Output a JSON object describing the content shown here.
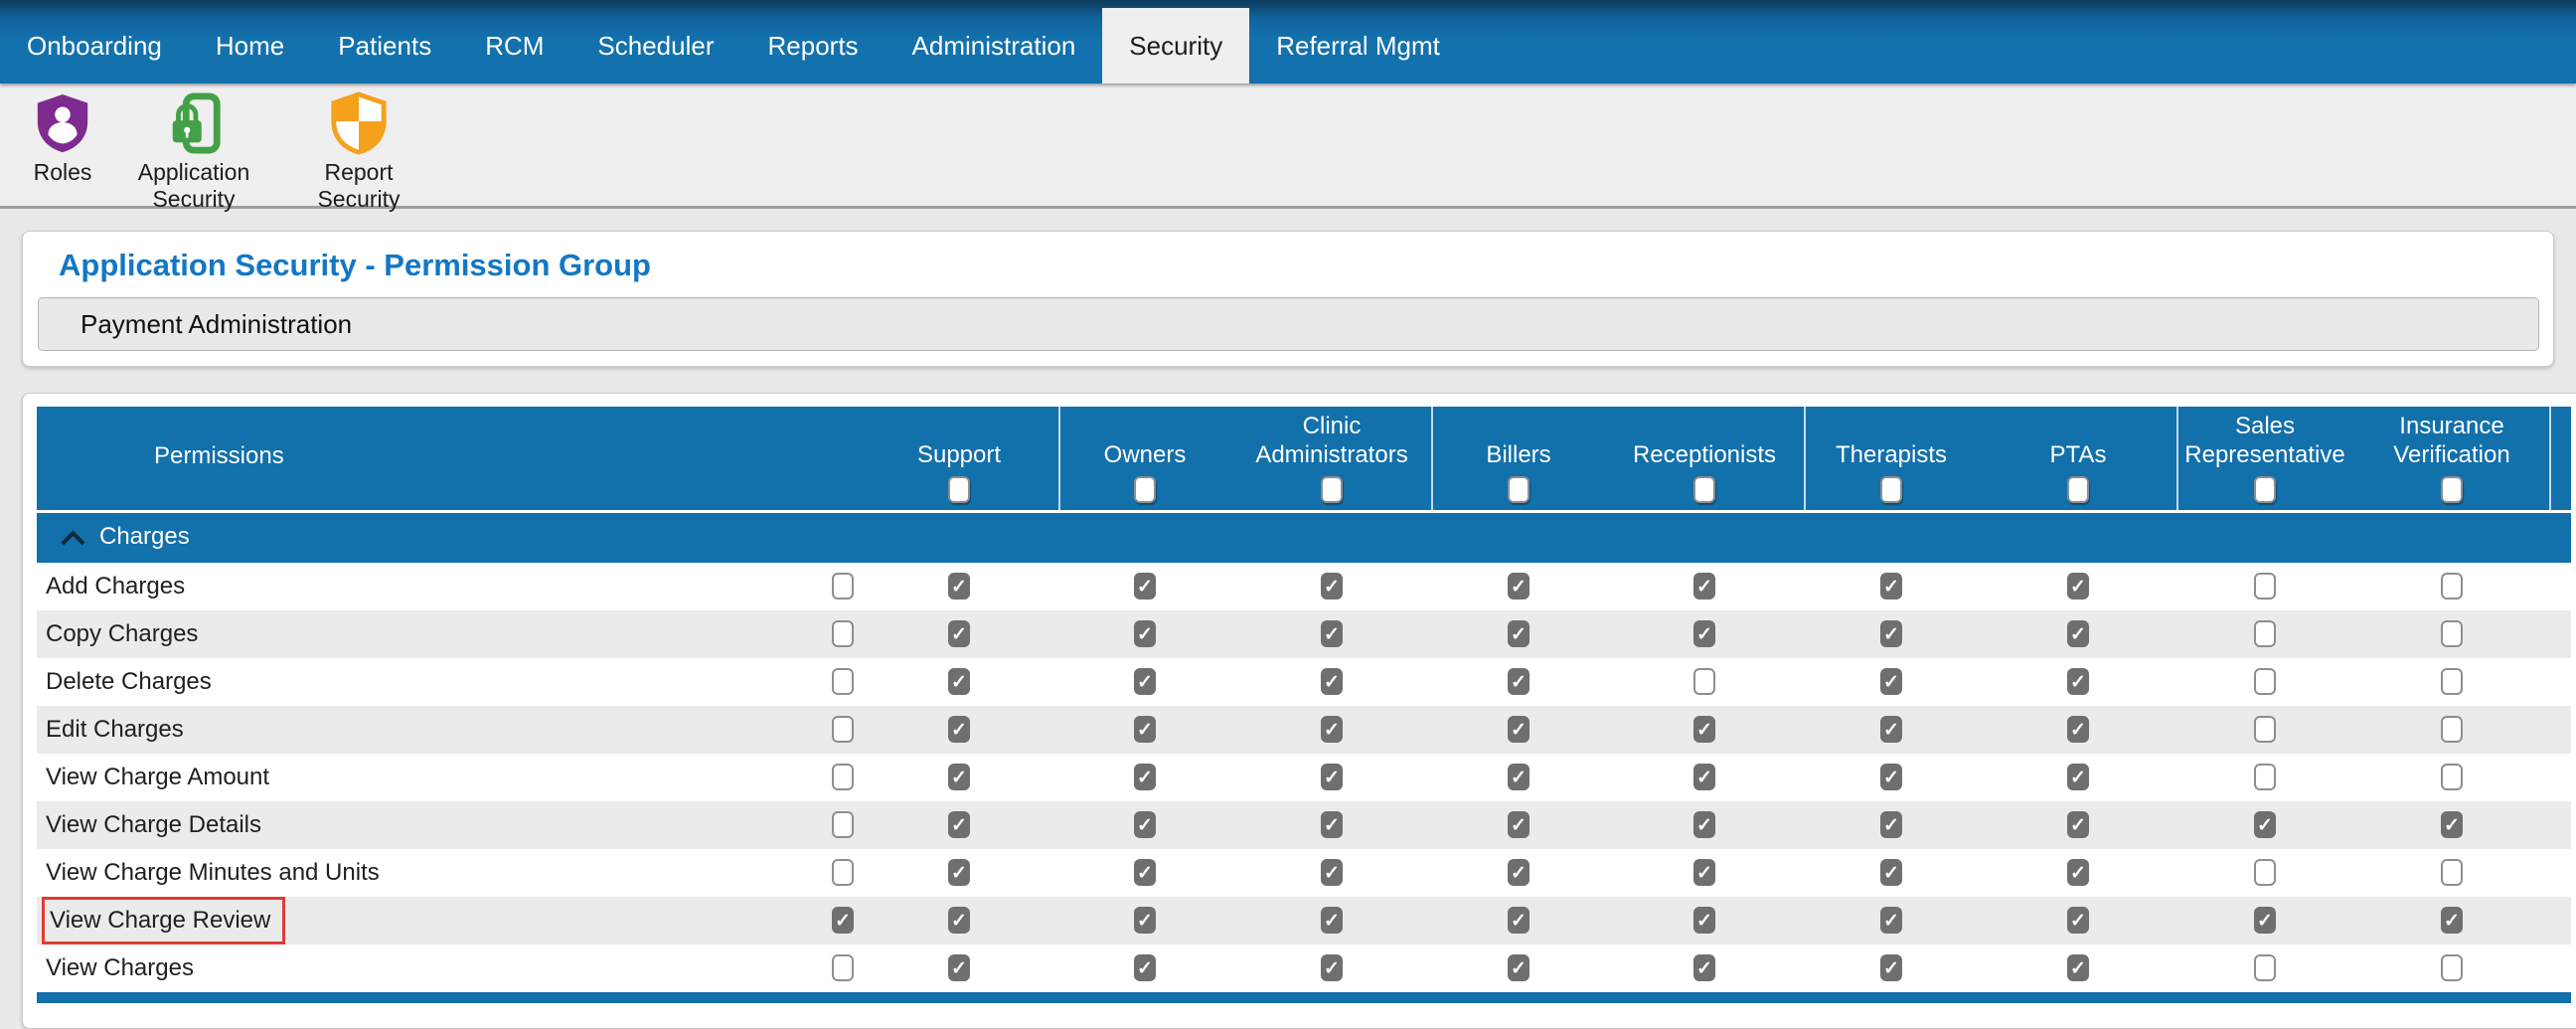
{
  "nav": {
    "tabs": [
      {
        "label": "Onboarding",
        "active": false
      },
      {
        "label": "Home",
        "active": false
      },
      {
        "label": "Patients",
        "active": false
      },
      {
        "label": "RCM",
        "active": false
      },
      {
        "label": "Scheduler",
        "active": false
      },
      {
        "label": "Reports",
        "active": false
      },
      {
        "label": "Administration",
        "active": false
      },
      {
        "label": "Security",
        "active": true
      },
      {
        "label": "Referral Mgmt",
        "active": false
      }
    ]
  },
  "toolbar": {
    "items": [
      {
        "label": "Roles",
        "icon": "roles-shield-icon",
        "color": "#7d2b8f"
      },
      {
        "label": "Application Security",
        "icon": "application-security-lock-icon",
        "color": "#43a047"
      },
      {
        "label": "Report Security",
        "icon": "report-security-shield-icon",
        "color": "#f5a11c"
      }
    ]
  },
  "page": {
    "title": "Application Security - Permission Group",
    "group_selector_value": "Payment Administration"
  },
  "table": {
    "permissions_header": "Permissions",
    "columns": [
      "Support",
      "Owners",
      "Clinic Administrators",
      "Billers",
      "Receptionists",
      "Therapists",
      "PTAs",
      "Sales Representative",
      "Insurance Verification"
    ],
    "group": {
      "label": "Charges",
      "state": "expanded"
    },
    "rows": [
      {
        "label": "Add Charges",
        "highlight": false,
        "checks": [
          false,
          true,
          true,
          true,
          true,
          true,
          true,
          true,
          false,
          false
        ]
      },
      {
        "label": "Copy Charges",
        "highlight": false,
        "checks": [
          false,
          true,
          true,
          true,
          true,
          true,
          true,
          true,
          false,
          false
        ]
      },
      {
        "label": "Delete Charges",
        "highlight": false,
        "checks": [
          false,
          true,
          true,
          true,
          true,
          false,
          true,
          true,
          false,
          false
        ]
      },
      {
        "label": "Edit Charges",
        "highlight": false,
        "checks": [
          false,
          true,
          true,
          true,
          true,
          true,
          true,
          true,
          false,
          false
        ]
      },
      {
        "label": "View Charge Amount",
        "highlight": false,
        "checks": [
          false,
          true,
          true,
          true,
          true,
          true,
          true,
          true,
          false,
          false
        ]
      },
      {
        "label": "View Charge Details",
        "highlight": false,
        "checks": [
          false,
          true,
          true,
          true,
          true,
          true,
          true,
          true,
          true,
          true
        ]
      },
      {
        "label": "View Charge Minutes and Units",
        "highlight": false,
        "checks": [
          false,
          true,
          true,
          true,
          true,
          true,
          true,
          true,
          false,
          false
        ]
      },
      {
        "label": "View Charge Review",
        "highlight": true,
        "checks": [
          true,
          true,
          true,
          true,
          true,
          true,
          true,
          true,
          true,
          true
        ]
      },
      {
        "label": "View Charges",
        "highlight": false,
        "checks": [
          false,
          true,
          true,
          true,
          true,
          true,
          true,
          true,
          false,
          false
        ]
      }
    ],
    "check_columns": [
      "row-select-all",
      "support",
      "owners",
      "clinic-administrators",
      "billers",
      "receptionists",
      "therapists",
      "ptas",
      "sales-representative",
      "insurance-verification"
    ]
  },
  "colors": {
    "nav_blue": "#1371ad",
    "header_blue": "#1270ab",
    "title_blue": "#1377c4",
    "alt_row": "#ebebeb",
    "checked_gray": "#6f6f6f",
    "highlight_red": "#e23b35",
    "roles_purple": "#7d2b8f",
    "app_security_green": "#43a047",
    "report_security_orange": "#f5a11c"
  }
}
